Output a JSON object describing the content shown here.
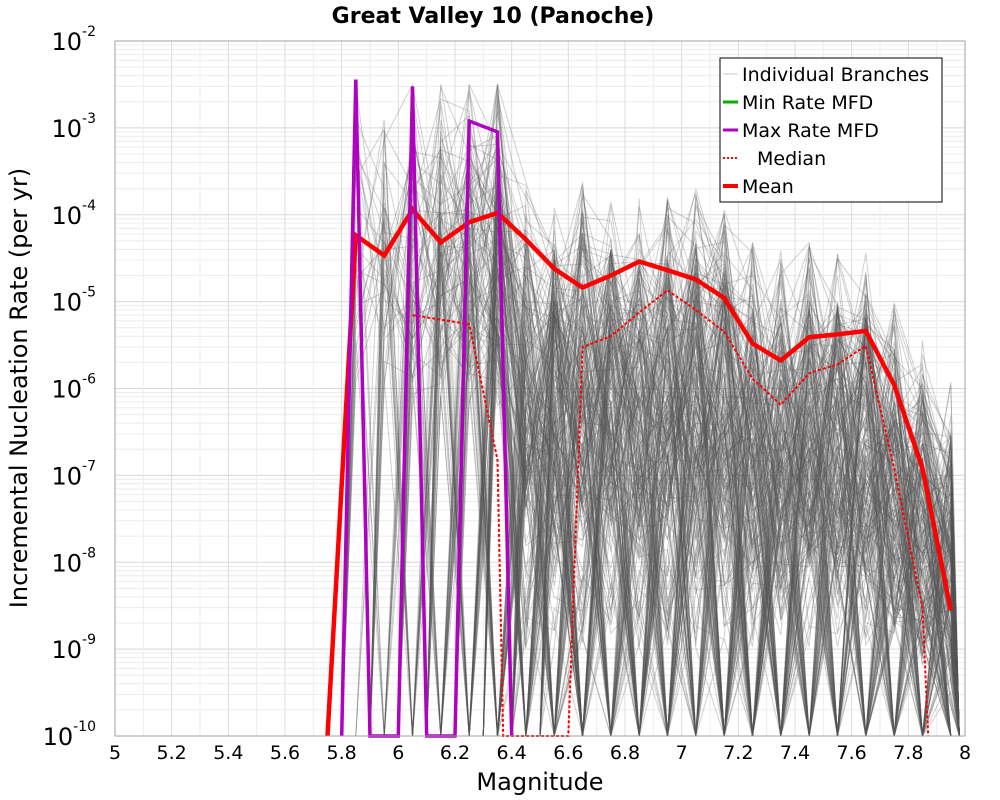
{
  "chart_data": {
    "type": "line",
    "title": "Great Valley 10 (Panoche)",
    "xlabel": "Magnitude",
    "ylabel": "Incremental Nucleation Rate (per yr)",
    "y_scale": "log",
    "xlim": [
      5,
      8
    ],
    "ylim": [
      1e-10,
      0.01
    ],
    "x_ticks": [
      "5",
      "5.2",
      "5.4",
      "5.6",
      "5.8",
      "6",
      "6.2",
      "6.4",
      "6.6",
      "6.8",
      "7",
      "7.2",
      "7.4",
      "7.6",
      "7.8",
      "8"
    ],
    "y_ticks": [
      {
        "base": "10",
        "exp": "-10"
      },
      {
        "base": "10",
        "exp": "-9"
      },
      {
        "base": "10",
        "exp": "-8"
      },
      {
        "base": "10",
        "exp": "-7"
      },
      {
        "base": "10",
        "exp": "-6"
      },
      {
        "base": "10",
        "exp": "-5"
      },
      {
        "base": "10",
        "exp": "-4"
      },
      {
        "base": "10",
        "exp": "-3"
      },
      {
        "base": "10",
        "exp": "-2"
      }
    ],
    "grid": true,
    "legend_position": "top-right",
    "legend": [
      {
        "label": "Individual Branches",
        "color": "#c8c8c8",
        "style": "thin"
      },
      {
        "label": "Min Rate MFD",
        "color": "#00b000",
        "style": "solid"
      },
      {
        "label": "Max Rate MFD",
        "color": "#b000c0",
        "style": "solid"
      },
      {
        "label": "Median",
        "color": "#ff0000",
        "style": "dotted"
      },
      {
        "label": "Mean",
        "color": "#ff0000",
        "style": "thick"
      }
    ],
    "series": [
      {
        "name": "Mean",
        "color": "#ff0000",
        "x": [
          5.75,
          5.85,
          5.95,
          6.05,
          6.15,
          6.25,
          6.35,
          6.45,
          6.55,
          6.65,
          6.75,
          6.85,
          6.95,
          7.05,
          7.15,
          7.25,
          7.35,
          7.45,
          7.55,
          7.65,
          7.75,
          7.85,
          7.95
        ],
        "y": [
          1e-10,
          5.8e-05,
          3.4e-05,
          0.000115,
          4.8e-05,
          8.2e-05,
          0.000105,
          5.2e-05,
          2.4e-05,
          1.45e-05,
          2e-05,
          2.9e-05,
          2.3e-05,
          1.8e-05,
          1.1e-05,
          3.3e-06,
          2.1e-06,
          3.9e-06,
          4.2e-06,
          4.6e-06,
          1.1e-06,
          1.2e-07,
          2.8e-09
        ]
      },
      {
        "name": "Median",
        "color": "#ff0000",
        "x": [
          6.05,
          6.25,
          6.35,
          6.37,
          6.6,
          6.65,
          6.75,
          6.85,
          6.95,
          7.05,
          7.15,
          7.25,
          7.35,
          7.45,
          7.55,
          7.65,
          7.75,
          7.85,
          7.87
        ],
        "y": [
          7e-06,
          5.5e-06,
          1.5e-07,
          1e-10,
          1e-10,
          3e-06,
          4e-06,
          7.5e-06,
          1.35e-05,
          8e-06,
          4.5e-06,
          1.3e-06,
          6.5e-07,
          1.5e-06,
          1.9e-06,
          3.1e-06,
          1.2e-07,
          3e-09,
          1e-10
        ]
      },
      {
        "name": "Max Rate MFD",
        "color": "#b000c0",
        "x": [
          5.8,
          5.85,
          5.9,
          6.0,
          6.05,
          6.1,
          6.2,
          6.25,
          6.35,
          6.4
        ],
        "y": [
          1e-10,
          0.0036,
          1e-10,
          1e-10,
          0.003,
          1e-10,
          1e-10,
          0.0012,
          0.0009,
          1e-10
        ]
      },
      {
        "name": "Min Rate MFD",
        "color": "#00b000",
        "x": [],
        "y": []
      }
    ]
  }
}
